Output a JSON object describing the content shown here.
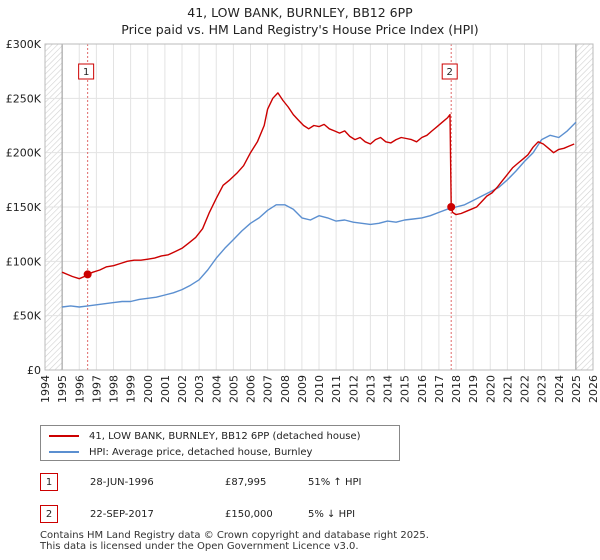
{
  "chart_data": {
    "type": "line",
    "title": "41, LOW BANK, BURNLEY, BB12 6PP",
    "subtitle": "Price paid vs. HM Land Registry's House Price Index (HPI)",
    "xlabel": "",
    "ylabel": "",
    "xlim": [
      1994,
      2026
    ],
    "ylim": [
      0,
      300000
    ],
    "x_ticks": [
      "1994",
      "1995",
      "1996",
      "1997",
      "1998",
      "1999",
      "2000",
      "2001",
      "2002",
      "2003",
      "2004",
      "2005",
      "2006",
      "2007",
      "2008",
      "2009",
      "2010",
      "2011",
      "2012",
      "2013",
      "2014",
      "2015",
      "2016",
      "2017",
      "2018",
      "2019",
      "2020",
      "2021",
      "2022",
      "2023",
      "2024",
      "2025",
      "2026"
    ],
    "y_ticks": [
      {
        "value": 0,
        "label": "£0"
      },
      {
        "value": 50000,
        "label": "£50K"
      },
      {
        "value": 100000,
        "label": "£100K"
      },
      {
        "value": 150000,
        "label": "£150K"
      },
      {
        "value": 200000,
        "label": "£200K"
      },
      {
        "value": 250000,
        "label": "£250K"
      },
      {
        "value": 300000,
        "label": "£300K"
      }
    ],
    "grid": true,
    "hatched_ranges": [
      [
        1994,
        1995.0
      ],
      [
        2025.0,
        2026
      ]
    ],
    "series": [
      {
        "name": "41, LOW BANK, BURNLEY, BB12 6PP (detached house)",
        "color": "#cc0000",
        "x": [
          1995.0,
          1995.3,
          1995.6,
          1996.0,
          1996.3,
          1996.49,
          1996.8,
          1997.2,
          1997.6,
          1998.0,
          1998.4,
          1998.8,
          1999.2,
          1999.6,
          2000.0,
          2000.4,
          2000.8,
          2001.2,
          2001.6,
          2002.0,
          2002.4,
          2002.8,
          2003.2,
          2003.6,
          2004.0,
          2004.4,
          2004.8,
          2005.2,
          2005.6,
          2006.0,
          2006.4,
          2006.8,
          2007.0,
          2007.3,
          2007.6,
          2007.9,
          2008.2,
          2008.5,
          2008.8,
          2009.1,
          2009.4,
          2009.7,
          2010.0,
          2010.3,
          2010.6,
          2010.9,
          2011.2,
          2011.5,
          2011.8,
          2012.1,
          2012.4,
          2012.7,
          2013.0,
          2013.3,
          2013.6,
          2013.9,
          2014.2,
          2014.5,
          2014.8,
          2015.1,
          2015.4,
          2015.7,
          2016.0,
          2016.3,
          2016.6,
          2016.9,
          2017.2,
          2017.5,
          2017.65,
          2017.72,
          2017.8,
          2018.0,
          2018.3,
          2018.6,
          2018.9,
          2019.2,
          2019.5,
          2019.8,
          2020.1,
          2020.4,
          2020.7,
          2021.0,
          2021.3,
          2021.6,
          2021.9,
          2022.2,
          2022.5,
          2022.8,
          2023.1,
          2023.4,
          2023.7,
          2024.0,
          2024.3,
          2024.6,
          2024.9
        ],
        "y": [
          90000,
          88000,
          86000,
          84000,
          86000,
          87995,
          90000,
          92000,
          95000,
          96000,
          98000,
          100000,
          101000,
          101000,
          102000,
          103000,
          105000,
          106000,
          109000,
          112000,
          117000,
          122000,
          130000,
          145000,
          158000,
          170000,
          175000,
          181000,
          188000,
          200000,
          210000,
          225000,
          240000,
          250000,
          255000,
          248000,
          242000,
          235000,
          230000,
          225000,
          222000,
          225000,
          224000,
          226000,
          222000,
          220000,
          218000,
          220000,
          215000,
          212000,
          214000,
          210000,
          208000,
          212000,
          214000,
          210000,
          209000,
          212000,
          214000,
          213000,
          212000,
          210000,
          214000,
          216000,
          220000,
          224000,
          228000,
          232000,
          235000,
          150000,
          145000,
          143000,
          144000,
          146000,
          148000,
          150000,
          155000,
          160000,
          163000,
          168000,
          174000,
          180000,
          186000,
          190000,
          194000,
          198000,
          205000,
          210000,
          208000,
          204000,
          200000,
          203000,
          204000,
          206000,
          208000
        ]
      },
      {
        "name": "HPI: Average price, detached house, Burnley",
        "color": "#5b8fd0",
        "x": [
          1995.0,
          1995.5,
          1996.0,
          1996.5,
          1997.0,
          1997.5,
          1998.0,
          1998.5,
          1999.0,
          1999.5,
          2000.0,
          2000.5,
          2001.0,
          2001.5,
          2002.0,
          2002.5,
          2003.0,
          2003.5,
          2004.0,
          2004.5,
          2005.0,
          2005.5,
          2006.0,
          2006.5,
          2007.0,
          2007.5,
          2008.0,
          2008.5,
          2009.0,
          2009.5,
          2010.0,
          2010.5,
          2011.0,
          2011.5,
          2012.0,
          2012.5,
          2013.0,
          2013.5,
          2014.0,
          2014.5,
          2015.0,
          2015.5,
          2016.0,
          2016.5,
          2017.0,
          2017.5,
          2018.0,
          2018.5,
          2019.0,
          2019.5,
          2020.0,
          2020.5,
          2021.0,
          2021.5,
          2022.0,
          2022.5,
          2023.0,
          2023.5,
          2024.0,
          2024.5,
          2025.0
        ],
        "y": [
          58000,
          59000,
          58000,
          59000,
          60000,
          61000,
          62000,
          63000,
          63000,
          65000,
          66000,
          67000,
          69000,
          71000,
          74000,
          78000,
          83000,
          92000,
          103000,
          112000,
          120000,
          128000,
          135000,
          140000,
          147000,
          152000,
          152000,
          148000,
          140000,
          138000,
          142000,
          140000,
          137000,
          138000,
          136000,
          135000,
          134000,
          135000,
          137000,
          136000,
          138000,
          139000,
          140000,
          142000,
          145000,
          148000,
          150000,
          152000,
          156000,
          160000,
          164000,
          168000,
          175000,
          183000,
          192000,
          200000,
          212000,
          216000,
          214000,
          220000,
          228000
        ]
      }
    ],
    "annotations": [
      {
        "label": "1",
        "x": 1996.49,
        "y": 87995
      },
      {
        "label": "2",
        "x": 2017.72,
        "y": 150000
      }
    ]
  },
  "legend": {
    "property_label": "41, LOW BANK, BURNLEY, BB12 6PP (detached house)",
    "hpi_label": "HPI: Average price, detached house, Burnley"
  },
  "transactions": [
    {
      "num": "1",
      "date": "28-JUN-1996",
      "price": "£87,995",
      "hpi": "51% ↑ HPI"
    },
    {
      "num": "2",
      "date": "22-SEP-2017",
      "price": "£150,000",
      "hpi": "5% ↓ HPI"
    }
  ],
  "footer": {
    "line1": "Contains HM Land Registry data © Crown copyright and database right 2025.",
    "line2": "This data is licensed under the Open Government Licence v3.0."
  }
}
